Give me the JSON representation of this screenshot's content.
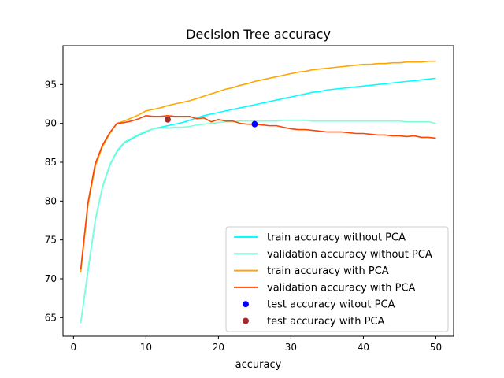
{
  "chart_data": {
    "type": "line",
    "title": "Decision Tree accuracy",
    "xlabel": "accuracy",
    "ylabel": "",
    "xlim": [
      -1.45,
      52.45
    ],
    "ylim": [
      62.6,
      100.0
    ],
    "xticks": [
      0,
      10,
      20,
      30,
      40,
      50
    ],
    "yticks": [
      65,
      70,
      75,
      80,
      85,
      90,
      95
    ],
    "grid": false,
    "legend_position": "lower-right",
    "x": [
      1,
      2,
      3,
      4,
      5,
      6,
      7,
      8,
      9,
      10,
      11,
      12,
      13,
      14,
      15,
      16,
      17,
      18,
      19,
      20,
      21,
      22,
      23,
      24,
      25,
      26,
      27,
      28,
      29,
      30,
      31,
      32,
      33,
      34,
      35,
      36,
      37,
      38,
      39,
      40,
      41,
      42,
      43,
      44,
      45,
      46,
      47,
      48,
      49,
      50
    ],
    "series": [
      {
        "name": "train accuracy without PCA",
        "color": "#00ffff",
        "values": [
          64.3,
          71.0,
          77.5,
          81.8,
          84.6,
          86.4,
          87.5,
          88.0,
          88.5,
          88.9,
          89.3,
          89.5,
          89.7,
          89.9,
          90.1,
          90.4,
          90.7,
          91.0,
          91.2,
          91.4,
          91.6,
          91.8,
          92.0,
          92.2,
          92.4,
          92.6,
          92.8,
          93.0,
          93.2,
          93.4,
          93.6,
          93.8,
          94.0,
          94.1,
          94.3,
          94.4,
          94.5,
          94.6,
          94.7,
          94.8,
          94.9,
          95.0,
          95.1,
          95.2,
          95.3,
          95.4,
          95.5,
          95.6,
          95.7,
          95.8
        ]
      },
      {
        "name": "validation accuracy without PCA",
        "color": "#7fffd4",
        "values": [
          64.3,
          71.2,
          77.6,
          81.9,
          84.7,
          86.5,
          87.6,
          88.1,
          88.6,
          89.0,
          89.3,
          89.4,
          89.4,
          89.5,
          89.5,
          89.6,
          89.8,
          89.9,
          90.0,
          90.1,
          90.2,
          90.2,
          90.3,
          90.3,
          90.3,
          90.3,
          90.3,
          90.3,
          90.4,
          90.4,
          90.4,
          90.4,
          90.3,
          90.3,
          90.3,
          90.3,
          90.3,
          90.3,
          90.3,
          90.3,
          90.3,
          90.3,
          90.3,
          90.3,
          90.3,
          90.2,
          90.2,
          90.2,
          90.2,
          90.0
        ]
      },
      {
        "name": "train accuracy with PCA",
        "color": "#ffa500",
        "values": [
          70.8,
          79.5,
          84.5,
          87.0,
          88.7,
          90.0,
          90.3,
          90.7,
          91.1,
          91.6,
          91.8,
          92.0,
          92.3,
          92.5,
          92.7,
          92.9,
          93.2,
          93.5,
          93.8,
          94.1,
          94.4,
          94.6,
          94.9,
          95.1,
          95.4,
          95.6,
          95.8,
          96.0,
          96.2,
          96.4,
          96.6,
          96.7,
          96.9,
          97.0,
          97.1,
          97.2,
          97.3,
          97.4,
          97.5,
          97.6,
          97.6,
          97.7,
          97.7,
          97.8,
          97.8,
          97.9,
          97.9,
          97.9,
          98.0,
          98.0
        ]
      },
      {
        "name": "validation accuracy with PCA",
        "color": "#ff4500",
        "values": [
          71.2,
          79.8,
          84.8,
          87.2,
          88.8,
          90.0,
          90.1,
          90.3,
          90.6,
          91.0,
          90.9,
          90.9,
          91.0,
          90.9,
          90.9,
          90.9,
          90.6,
          90.7,
          90.2,
          90.5,
          90.3,
          90.3,
          90.0,
          89.9,
          89.9,
          89.8,
          89.7,
          89.7,
          89.5,
          89.3,
          89.2,
          89.2,
          89.1,
          89.0,
          88.9,
          88.9,
          88.9,
          88.8,
          88.7,
          88.7,
          88.6,
          88.5,
          88.5,
          88.4,
          88.4,
          88.3,
          88.4,
          88.2,
          88.2,
          88.1
        ]
      }
    ],
    "points": [
      {
        "name": "test accuracy witout PCA",
        "color": "#0000ff",
        "x": 25,
        "y": 89.9
      },
      {
        "name": "test accuracy with PCA",
        "color": "#a52a2a",
        "x": 13,
        "y": 90.5
      }
    ]
  }
}
